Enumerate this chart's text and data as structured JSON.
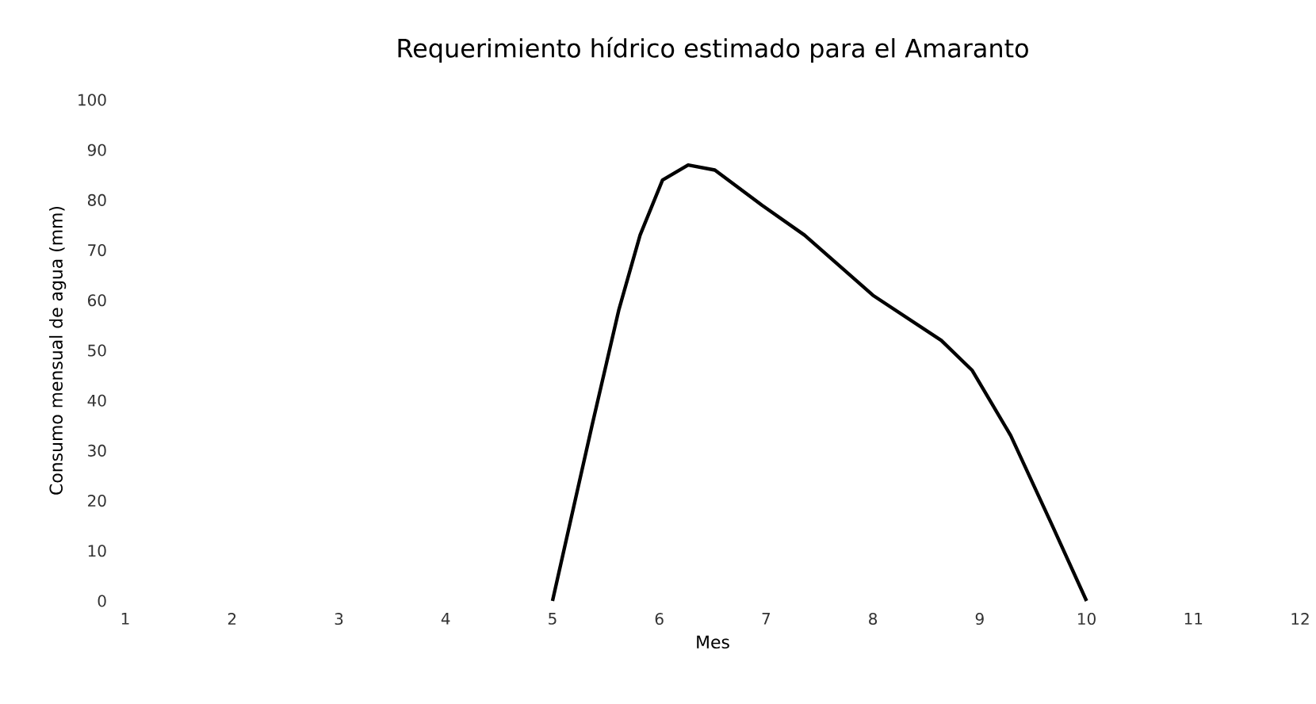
{
  "chart_data": {
    "type": "line",
    "title": "Requerimiento hídrico estimado para el Amaranto",
    "xlabel": "Mes",
    "ylabel": "Consumo mensual de agua (mm)",
    "xlim": [
      1,
      12
    ],
    "xticks": [
      1,
      2,
      3,
      4,
      5,
      6,
      7,
      8,
      9,
      10,
      11,
      12
    ],
    "ylim": [
      0,
      100
    ],
    "yticks": [
      0,
      10,
      20,
      30,
      40,
      50,
      60,
      70,
      80,
      90,
      100
    ],
    "grid": false,
    "marker": "none",
    "line_style": "solid",
    "series": [
      {
        "color": "#000000",
        "x": [
          5,
          5.37,
          5.62,
          5.82,
          6.03,
          6.27,
          6.52,
          6.96,
          7.36,
          8.0,
          8.64,
          8.93,
          9.29,
          9.68,
          10
        ],
        "values": [
          0,
          35,
          58,
          73,
          84,
          87,
          86,
          79,
          73,
          61,
          52,
          46,
          33,
          15,
          0
        ]
      }
    ]
  }
}
